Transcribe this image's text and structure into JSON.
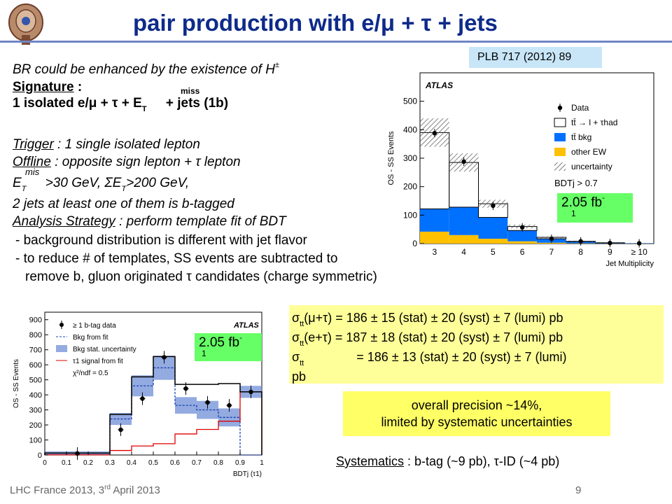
{
  "slide": {
    "title": "pair production with e/μ + τ + jets",
    "reference": "PLB 717 (2012) 89",
    "lines": {
      "br": "BR could be enhanced by the existence of H",
      "br_sup": "±",
      "sig_label": "Signature",
      "sig_colon": " :",
      "miss": "miss",
      "sig_text": "1 isolated e/μ + τ + E",
      "sig_T": "T",
      "sig_rest": " + jets (1b)",
      "trig_label": "Trigger",
      "trig_text": " : 1 single isolated lepton",
      "off_label": "Offline",
      "off_text": " : opposite sign lepton + τ lepton",
      "met_E": "E",
      "met_T": "T",
      "met_miss": "mis",
      "met_text": " >30 GeV, ΣE",
      "met_T2": "T",
      "met_text2": ">200 GeV,",
      "jets": "2 jets at least one of them is b-tagged",
      "ana_label": "Analysis Strategy",
      "ana_text": " : perform template fit of BDT",
      "bullet1": "- background distribution is different with jet flavor",
      "bullet2": "- to reduce # of templates, SS events are subtracted to",
      "bullet3": "remove b, gluon originated τ candidates (charge symmetric)"
    },
    "results": {
      "r1_pre": "σ",
      "r1_sub": "tt",
      "r1_chan": "(μ+τ)",
      "r1_val": " = 186 ± 15 (stat) ± 20 (syst) ± 7 (lumi) pb",
      "r2_pre": "σ",
      "r2_sub": "tt",
      "r2_chan": "(e+τ)",
      "r2_val": " = 187 ± 18 (stat) ± 20 (syst) ± 7 (lumi) pb",
      "r3_pre": "σ",
      "r3_sub": "tt",
      "r3_val": " = 186 ± 13 (stat) ± 20 (syst) ± 7 (lumi)",
      "r3_cont": "pb"
    },
    "precision": [
      "overall precision ~14%,",
      "limited by systematic uncertainties"
    ],
    "systematics_label": "Systematics",
    "systematics_text": " : b-tag (~9 pb), τ-ID (~4 pb)",
    "lumi_label": "2.05 fb",
    "lumi_sup": "-",
    "lumi_sub": "1",
    "footer_left": "LHC France 2013, 3",
    "footer_left_sup": "rd",
    "footer_left_rest": " April 2013",
    "footer_page": "9",
    "colors": {
      "title": "#0e2a8a",
      "ttbar_bkg": "#0070ff",
      "other_ew": "#ffc000",
      "signal": "#e00000",
      "fit_band": "#6f8fd6"
    }
  },
  "chart_data": [
    {
      "type": "bar",
      "atlas_label": "ATLAS",
      "ylabel": "OS - SS Events",
      "xlabel": "Jet Multiplicity",
      "categories": [
        "3",
        "4",
        "5",
        "6",
        "7",
        "8",
        "9",
        "≥ 10"
      ],
      "ylim": [
        0,
        600
      ],
      "yticks": [
        0,
        100,
        200,
        300,
        400,
        500
      ],
      "legend_position": "top-right",
      "legend": [
        "Data",
        "tt̄ → l + τhad",
        "tt̄ bkg",
        "other EW",
        "uncertainty"
      ],
      "cut_label": "BDTj > 0.7",
      "series": [
        {
          "name": "Data",
          "values": [
            388,
            288,
            133,
            57,
            17,
            8,
            2,
            1
          ]
        },
        {
          "name": "tt̄ → l + τhad",
          "values": [
            390,
            285,
            140,
            60,
            22,
            8,
            3,
            1
          ]
        },
        {
          "name": "tt̄ bkg",
          "values": [
            80,
            98,
            75,
            38,
            14,
            6,
            2,
            1
          ]
        },
        {
          "name": "other EW",
          "values": [
            42,
            30,
            17,
            8,
            3,
            1,
            0.5,
            0.3
          ]
        }
      ],
      "uncertainty_halfwidth": [
        50,
        32,
        14,
        7,
        3,
        2,
        1,
        1
      ]
    },
    {
      "type": "bar",
      "atlas_label": "ATLAS",
      "ylabel": "OS - SS Events",
      "xlabel": "BDTj (τ1)",
      "xlim": [
        0,
        1
      ],
      "x_edges": [
        0,
        0.3,
        0.4,
        0.5,
        0.6,
        0.7,
        0.8,
        0.9,
        1.0
      ],
      "xticks": [
        "0",
        "0.1",
        "0.2",
        "0.3",
        "0.4",
        "0.5",
        "0.6",
        "0.7",
        "0.8",
        "0.9",
        "1"
      ],
      "ylim": [
        0,
        950
      ],
      "yticks": [
        0,
        100,
        200,
        300,
        400,
        500,
        600,
        700,
        800,
        900
      ],
      "legend_position": "top-left",
      "legend": [
        "≥ 1 b-tag data",
        "Bkg from fit",
        "Bkg stat. uncertainty",
        "τ1 signal from fit"
      ],
      "chi2": "χ²/ndf = 0.5",
      "series": [
        {
          "name": "≥ 1 b-tag data",
          "values": [
            10,
            168,
            375,
            650,
            442,
            350,
            330,
            420
          ]
        },
        {
          "name": "Bkg from fit",
          "values": [
            12,
            240,
            460,
            580,
            330,
            300,
            250,
            0
          ]
        },
        {
          "name": "τ1 signal from fit",
          "values": [
            1,
            30,
            60,
            75,
            140,
            170,
            225,
            420
          ]
        },
        {
          "name": "Total fit",
          "values": [
            13,
            270,
            520,
            655,
            470,
            470,
            475,
            420
          ]
        }
      ],
      "uncertainty_halfwidth": [
        12,
        40,
        70,
        80,
        55,
        60,
        60,
        40
      ]
    }
  ]
}
